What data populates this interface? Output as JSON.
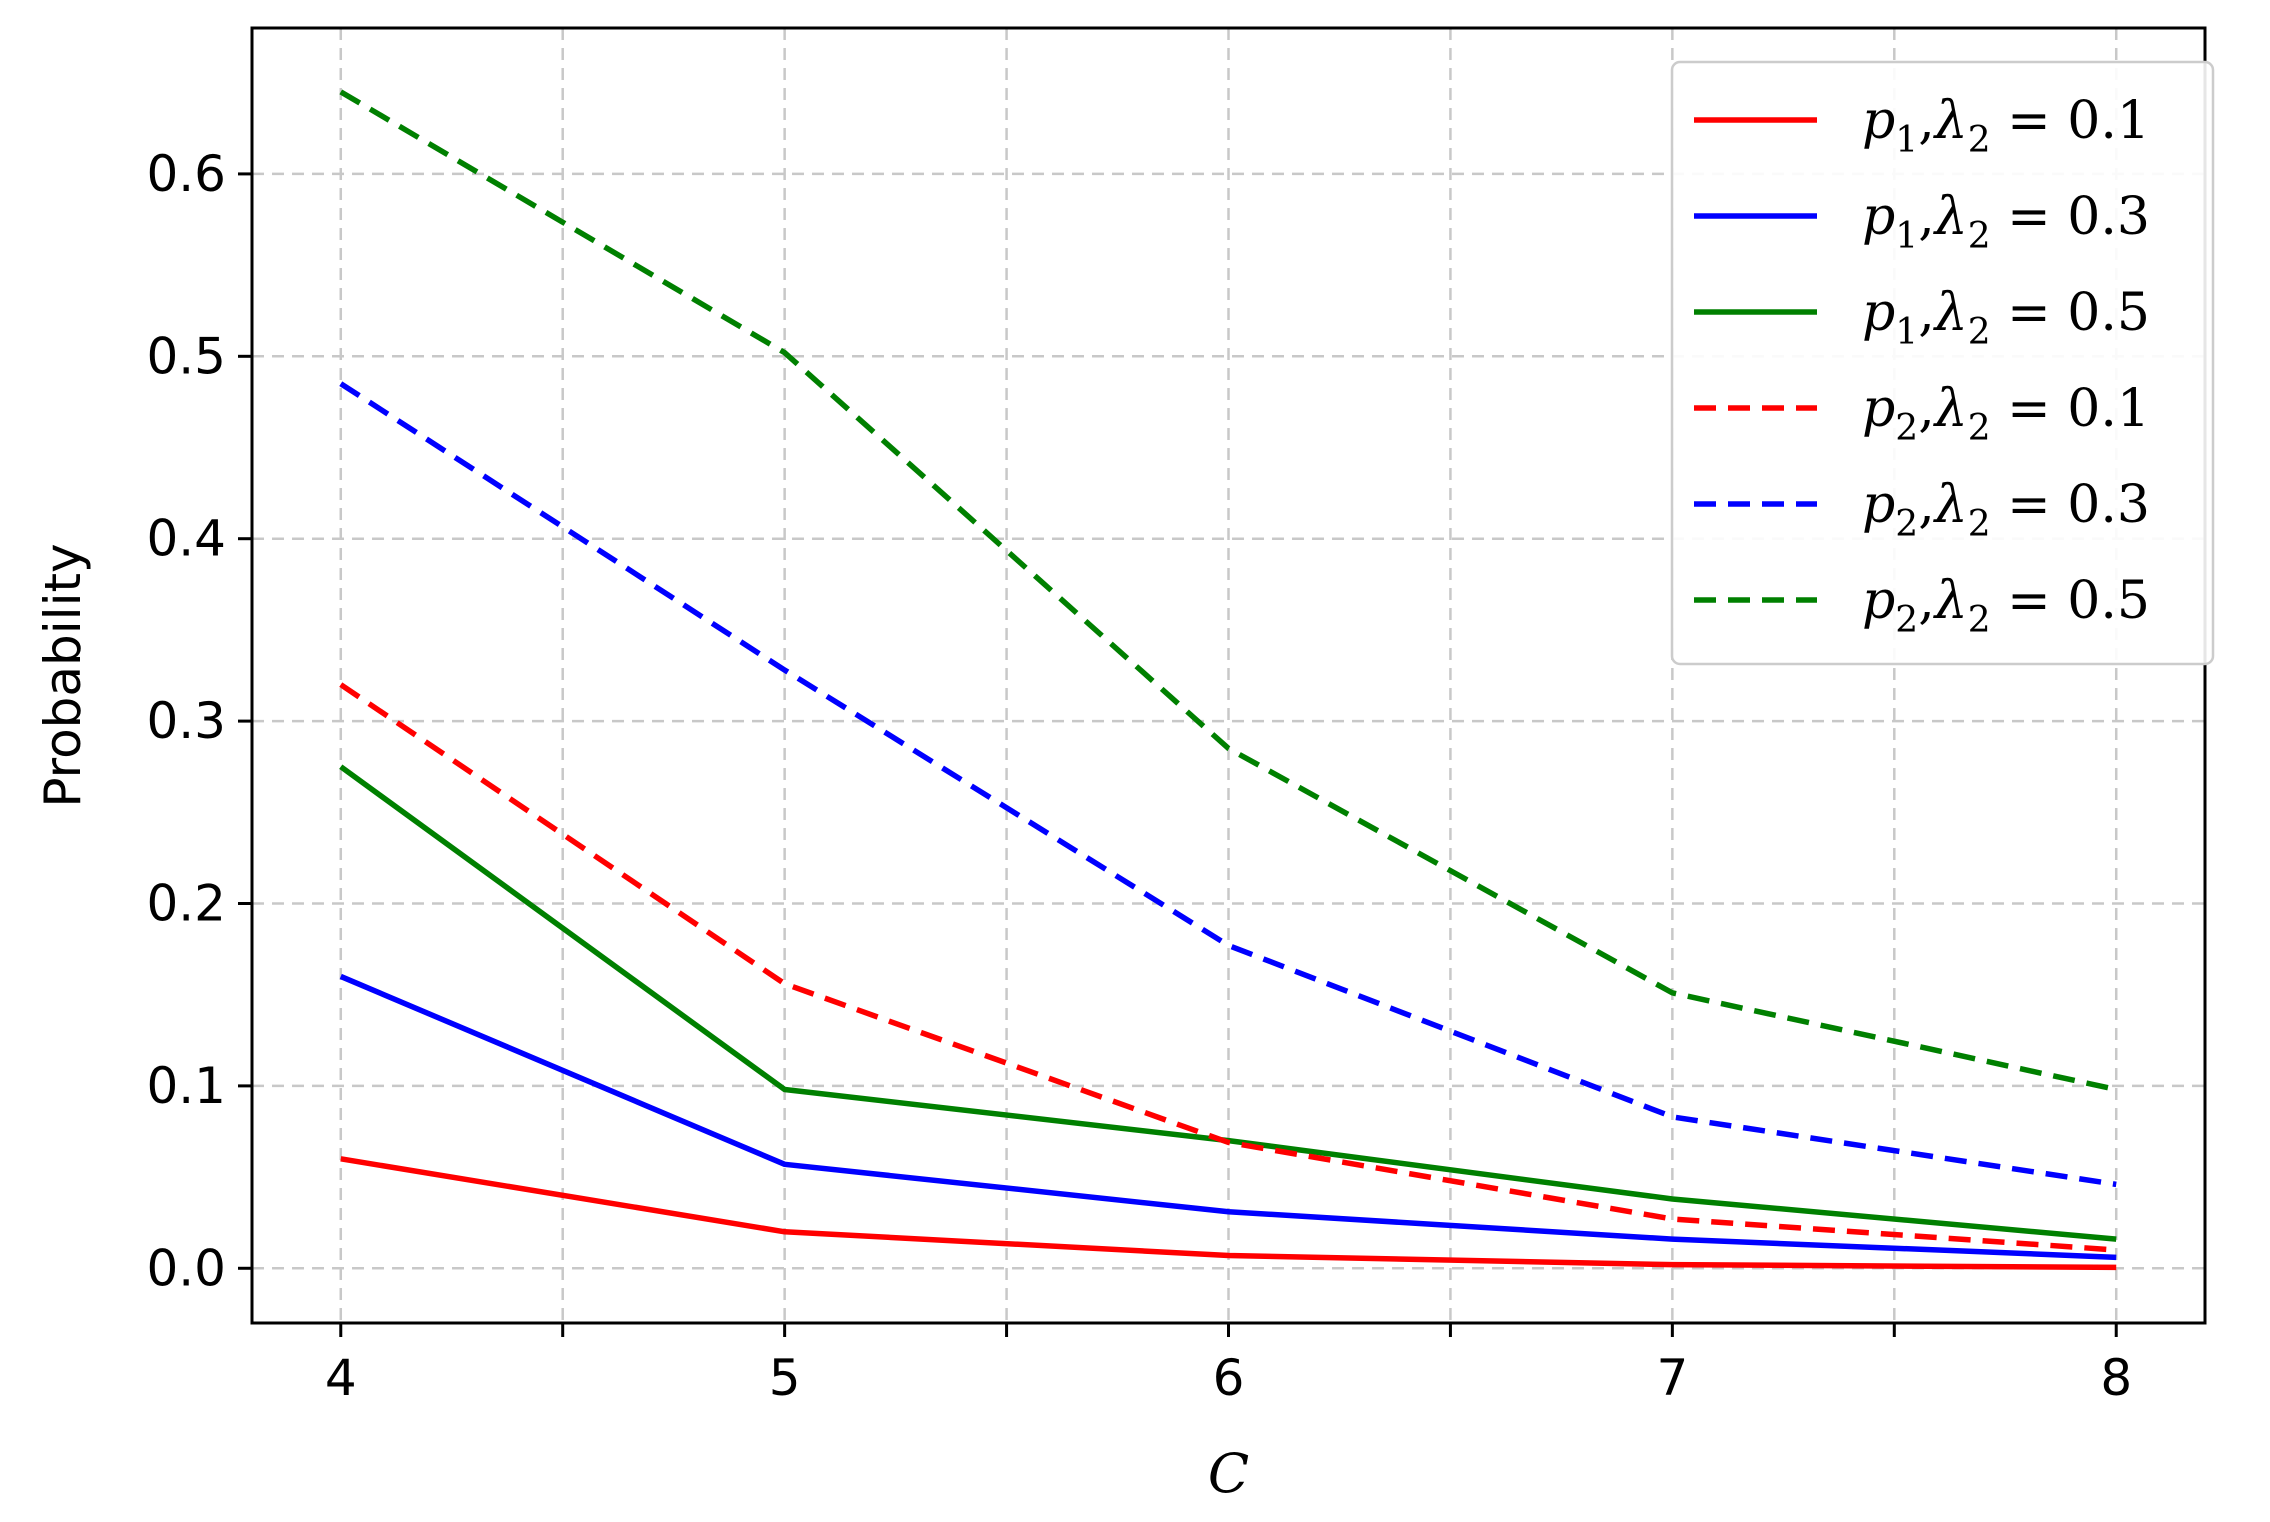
{
  "chart_data": {
    "type": "line",
    "xlabel": "C",
    "ylabel": "Probability",
    "x": [
      4,
      5,
      6,
      7,
      8
    ],
    "xticks": [
      4,
      5,
      6,
      7,
      8
    ],
    "xticks_minor": [
      4.5,
      5.5,
      6.5,
      7.5
    ],
    "xlim": [
      3.8,
      8.2
    ],
    "yticks": [
      "0.0",
      "0.1",
      "0.2",
      "0.3",
      "0.4",
      "0.5",
      "0.6"
    ],
    "ylim": [
      -0.03,
      0.68
    ],
    "grid": true,
    "legend_position": "top-right",
    "series": [
      {
        "name": "p1, λ2 = 0.1",
        "var": "p",
        "sub": "1",
        "lam": "0.1",
        "color": "#ff0000",
        "style": "solid",
        "values": [
          0.06,
          0.02,
          0.007,
          0.002,
          0.0005
        ]
      },
      {
        "name": "p1, λ2 = 0.3",
        "var": "p",
        "sub": "1",
        "lam": "0.3",
        "color": "#0000ff",
        "style": "solid",
        "values": [
          0.16,
          0.057,
          0.031,
          0.016,
          0.006
        ]
      },
      {
        "name": "p1, λ2 = 0.5",
        "var": "p",
        "sub": "1",
        "lam": "0.5",
        "color": "#008000",
        "style": "solid",
        "values": [
          0.275,
          0.098,
          0.07,
          0.038,
          0.016
        ]
      },
      {
        "name": "p2, λ2 = 0.1",
        "var": "p",
        "sub": "2",
        "lam": "0.1",
        "color": "#ff0000",
        "style": "dashed",
        "values": [
          0.32,
          0.156,
          0.069,
          0.027,
          0.01
        ]
      },
      {
        "name": "p2, λ2 = 0.3",
        "var": "p",
        "sub": "2",
        "lam": "0.3",
        "color": "#0000ff",
        "style": "dashed",
        "values": [
          0.485,
          0.328,
          0.177,
          0.083,
          0.046
        ]
      },
      {
        "name": "p2, λ2 = 0.5",
        "var": "p",
        "sub": "2",
        "lam": "0.5",
        "color": "#008000",
        "style": "dashed",
        "values": [
          0.645,
          0.502,
          0.285,
          0.151,
          0.098
        ]
      }
    ]
  }
}
